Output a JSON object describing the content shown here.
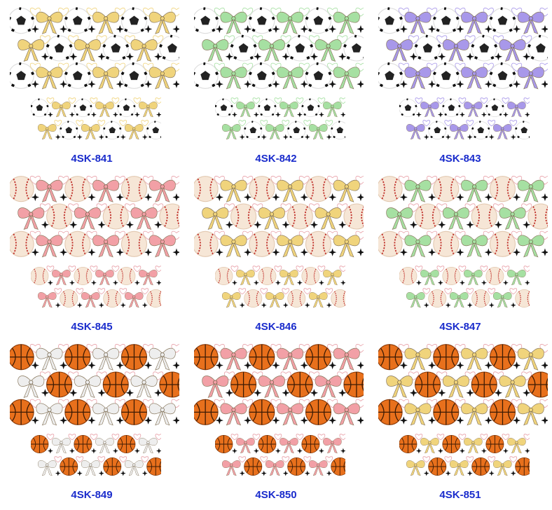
{
  "products": [
    {
      "code": "4SK-841",
      "sport": "soccer",
      "bow_color": "#f0d47c"
    },
    {
      "code": "4SK-842",
      "sport": "soccer",
      "bow_color": "#a6e0a2"
    },
    {
      "code": "4SK-843",
      "sport": "soccer",
      "bow_color": "#a898ea"
    },
    {
      "code": "4SK-845",
      "sport": "baseball",
      "bow_color": "#f2a0a6"
    },
    {
      "code": "4SK-846",
      "sport": "baseball",
      "bow_color": "#f0d47c"
    },
    {
      "code": "4SK-847",
      "sport": "baseball",
      "bow_color": "#a6e0a2"
    },
    {
      "code": "4SK-849",
      "sport": "basketball",
      "bow_color": "#eeeeee"
    },
    {
      "code": "4SK-850",
      "sport": "basketball",
      "bow_color": "#f2a0a6"
    },
    {
      "code": "4SK-851",
      "sport": "basketball",
      "bow_color": "#f0d47c"
    }
  ],
  "label_color": "#1a2ccc"
}
